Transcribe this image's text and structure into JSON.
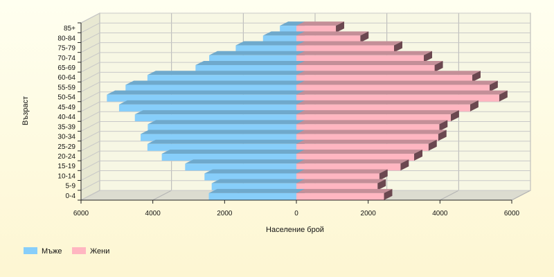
{
  "chart_data": {
    "type": "bar",
    "orientation": "horizontal",
    "three_d": true,
    "title": "",
    "xlabel": "Население брой",
    "ylabel": "Възраст",
    "categories": [
      "0-4",
      "5-9",
      "10-14",
      "15-19",
      "20-24",
      "25-29",
      "30-34",
      "35-39",
      "40-44",
      "45-49",
      "50-54",
      "55-59",
      "60-64",
      "65-69",
      "70-74",
      "75-79",
      "80-84",
      "85+"
    ],
    "series": [
      {
        "name": "Мъже",
        "color": "#87cefa",
        "values": [
          2440,
          2360,
          2560,
          3100,
          3750,
          4150,
          4340,
          4140,
          4500,
          4940,
          5280,
          4760,
          4150,
          2810,
          2430,
          1690,
          930,
          460
        ]
      },
      {
        "name": "Жени",
        "color": "#ffb6c1",
        "values": [
          2440,
          2260,
          2310,
          2900,
          3280,
          3680,
          3950,
          3980,
          4300,
          4840,
          5650,
          5380,
          4900,
          3850,
          3550,
          2720,
          1780,
          1100
        ]
      }
    ],
    "xlim": [
      -6000,
      6000
    ],
    "xticks": [
      -6000,
      -4000,
      -2000,
      0,
      2000,
      4000,
      6000
    ],
    "xtick_labels": [
      "6000",
      "4000",
      "2000",
      "0",
      "2000",
      "4000",
      "6000"
    ],
    "grid": true,
    "legend_position": "bottom-left"
  }
}
